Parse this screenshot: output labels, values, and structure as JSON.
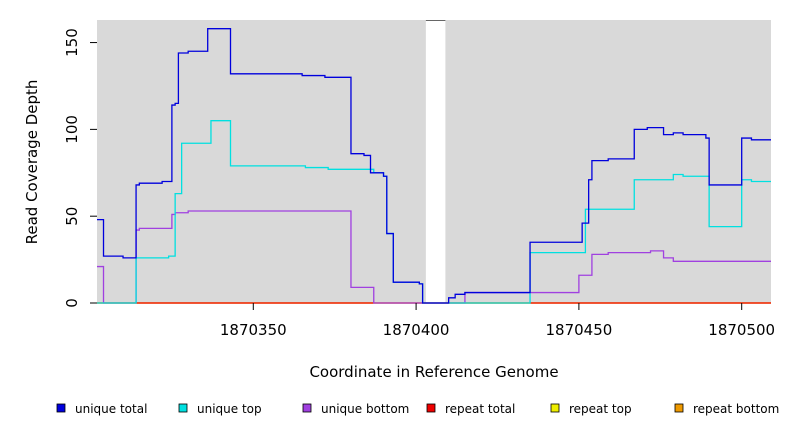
{
  "chart_data": {
    "type": "line",
    "step": true,
    "xlabel": "Coordinate in Reference Genome",
    "ylabel": "Read Coverage Depth",
    "xlim": [
      1870302,
      1870509
    ],
    "ylim": [
      0,
      163
    ],
    "x_ticks": [
      1870350,
      1870400,
      1870450,
      1870500
    ],
    "x_tick_labels": [
      "1870350",
      "1870400",
      "1870450",
      "1870500"
    ],
    "y_ticks": [
      0,
      50,
      100,
      150
    ],
    "y_tick_labels": [
      "0",
      "50",
      "100",
      "150"
    ],
    "panel_background": "#d9d9d9",
    "gap": [
      1870403,
      1870409
    ],
    "series": [
      {
        "name": "unique total",
        "color": "#0000dd",
        "points": [
          [
            1870302,
            48
          ],
          [
            1870304,
            27
          ],
          [
            1870309,
            27
          ],
          [
            1870310,
            26
          ],
          [
            1870313,
            26
          ],
          [
            1870314,
            68
          ],
          [
            1870315,
            69
          ],
          [
            1870322,
            70
          ],
          [
            1870325,
            114
          ],
          [
            1870326,
            115
          ],
          [
            1870327,
            144
          ],
          [
            1870330,
            145
          ],
          [
            1870336,
            158
          ],
          [
            1870343,
            132
          ],
          [
            1870365,
            131
          ],
          [
            1870372,
            130
          ],
          [
            1870380,
            86
          ],
          [
            1870384,
            85
          ],
          [
            1870386,
            75
          ],
          [
            1870390,
            73
          ],
          [
            1870391,
            40
          ],
          [
            1870393,
            12
          ],
          [
            1870401,
            11
          ],
          [
            1870402,
            0
          ],
          [
            1870409,
            0
          ],
          [
            1870410,
            3
          ],
          [
            1870412,
            5
          ],
          [
            1870415,
            6
          ],
          [
            1870435,
            35
          ],
          [
            1870451,
            46
          ],
          [
            1870453,
            71
          ],
          [
            1870454,
            82
          ],
          [
            1870459,
            83
          ],
          [
            1870467,
            100
          ],
          [
            1870471,
            101
          ],
          [
            1870476,
            97
          ],
          [
            1870479,
            98
          ],
          [
            1870482,
            97
          ],
          [
            1870489,
            95
          ],
          [
            1870490,
            68
          ],
          [
            1870500,
            95
          ],
          [
            1870503,
            94
          ],
          [
            1870509,
            94
          ]
        ]
      },
      {
        "name": "unique top",
        "color": "#00e0e0",
        "points": [
          [
            1870302,
            0
          ],
          [
            1870314,
            26
          ],
          [
            1870324,
            27
          ],
          [
            1870326,
            63
          ],
          [
            1870328,
            92
          ],
          [
            1870337,
            105
          ],
          [
            1870343,
            79
          ],
          [
            1870366,
            78
          ],
          [
            1870373,
            77
          ],
          [
            1870387,
            75
          ],
          [
            1870390,
            73
          ],
          [
            1870391,
            40
          ],
          [
            1870393,
            12
          ],
          [
            1870401,
            11
          ],
          [
            1870402,
            0
          ],
          [
            1870435,
            29
          ],
          [
            1870452,
            54
          ],
          [
            1870467,
            71
          ],
          [
            1870479,
            74
          ],
          [
            1870482,
            73
          ],
          [
            1870490,
            44
          ],
          [
            1870500,
            71
          ],
          [
            1870503,
            70
          ],
          [
            1870509,
            70
          ]
        ]
      },
      {
        "name": "unique bottom",
        "color": "#a040e0",
        "points": [
          [
            1870302,
            21
          ],
          [
            1870304,
            0
          ],
          [
            1870314,
            42
          ],
          [
            1870315,
            43
          ],
          [
            1870325,
            51
          ],
          [
            1870326,
            52
          ],
          [
            1870330,
            53
          ],
          [
            1870380,
            9
          ],
          [
            1870387,
            0
          ],
          [
            1870415,
            6
          ],
          [
            1870450,
            16
          ],
          [
            1870454,
            28
          ],
          [
            1870459,
            29
          ],
          [
            1870472,
            30
          ],
          [
            1870476,
            26
          ],
          [
            1870479,
            24
          ],
          [
            1870509,
            24
          ]
        ]
      },
      {
        "name": "repeat total",
        "color": "#ee0000",
        "points": [
          [
            1870302,
            0
          ],
          [
            1870509,
            0
          ]
        ]
      },
      {
        "name": "repeat top",
        "color": "#eeee00",
        "points": [
          [
            1870302,
            0
          ],
          [
            1870509,
            0
          ]
        ]
      },
      {
        "name": "repeat bottom",
        "color": "#ee9900",
        "points": [
          [
            1870302,
            0
          ],
          [
            1870509,
            0
          ]
        ]
      }
    ],
    "legend_position": "bottom"
  }
}
